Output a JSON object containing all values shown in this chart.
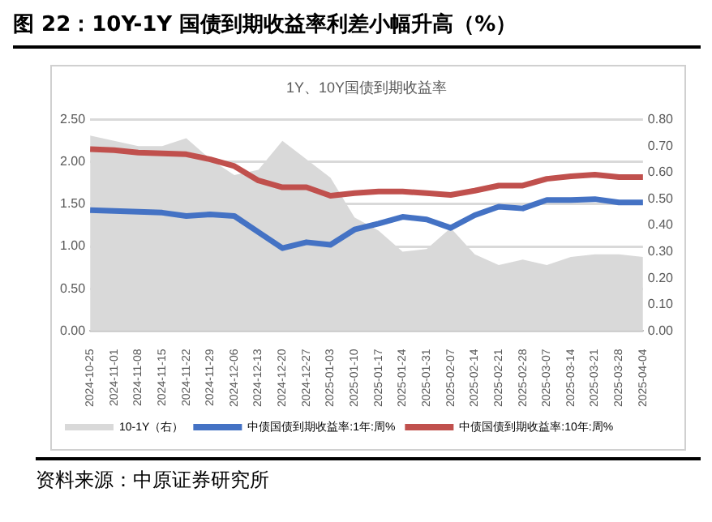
{
  "chart_data": {
    "type": "line",
    "title": "图 22：10Y-1Y 国债到期收益率利差小幅升高（%）",
    "subtitle": "1Y、10Y国债到期收益率",
    "categories": [
      "2024-10-25",
      "2024-11-01",
      "2024-11-08",
      "2024-11-15",
      "2024-11-22",
      "2024-11-29",
      "2024-12-06",
      "2024-12-13",
      "2024-12-20",
      "2024-12-27",
      "2025-01-03",
      "2025-01-10",
      "2025-01-17",
      "2025-01-24",
      "2025-01-31",
      "2025-02-07",
      "2025-02-14",
      "2025-02-21",
      "2025-02-28",
      "2025-03-07",
      "2025-03-14",
      "2025-03-21",
      "2025-03-28",
      "2025-04-04"
    ],
    "series": [
      {
        "name": "10-1Y（右）",
        "type": "area",
        "axis": "y2",
        "color": "#d9d9d9",
        "values": [
          0.74,
          0.72,
          0.7,
          0.7,
          0.73,
          0.65,
          0.59,
          0.61,
          0.72,
          0.65,
          0.58,
          0.43,
          0.38,
          0.3,
          0.31,
          0.39,
          0.29,
          0.25,
          0.27,
          0.25,
          0.28,
          0.29,
          0.29,
          0.28
        ]
      },
      {
        "name": "中债国债到期收益率:1年:周%",
        "type": "line",
        "color": "#4472c4",
        "values": [
          1.43,
          1.42,
          1.41,
          1.4,
          1.36,
          1.38,
          1.36,
          1.17,
          0.98,
          1.05,
          1.02,
          1.2,
          1.27,
          1.35,
          1.32,
          1.22,
          1.37,
          1.47,
          1.45,
          1.55,
          1.55,
          1.56,
          1.52,
          1.52
        ]
      },
      {
        "name": "中债国债到期收益率:10年:周%",
        "type": "line",
        "color": "#c0504d",
        "values": [
          2.15,
          2.14,
          2.11,
          2.1,
          2.09,
          2.03,
          1.95,
          1.78,
          1.7,
          1.7,
          1.6,
          1.63,
          1.65,
          1.65,
          1.63,
          1.61,
          1.66,
          1.72,
          1.72,
          1.8,
          1.83,
          1.85,
          1.82,
          1.82
        ]
      }
    ],
    "ylim": [
      0,
      2.5
    ],
    "yticks": [
      {
        "value": 0,
        "label": "0.00"
      },
      {
        "value": 0.5,
        "label": "0.50"
      },
      {
        "value": 1,
        "label": "1.00"
      },
      {
        "value": 1.5,
        "label": "1.50"
      },
      {
        "value": 2,
        "label": "2.00"
      },
      {
        "value": 2.5,
        "label": "2.50"
      }
    ],
    "y2lim": [
      0,
      0.8
    ],
    "y2ticks": [
      {
        "value": 0,
        "label": "0.00"
      },
      {
        "value": 0.1,
        "label": "0.10"
      },
      {
        "value": 0.2,
        "label": "0.20"
      },
      {
        "value": 0.3,
        "label": "0.30"
      },
      {
        "value": 0.4,
        "label": "0.40"
      },
      {
        "value": 0.5,
        "label": "0.50"
      },
      {
        "value": 0.6,
        "label": "0.60"
      },
      {
        "value": 0.7,
        "label": "0.70"
      },
      {
        "value": 0.8,
        "label": "0.80"
      }
    ],
    "grid": "y",
    "legend": "bottom",
    "marker": "none",
    "line_style": "solid",
    "annotations": [
      "资料来源：中原证券研究所"
    ]
  }
}
